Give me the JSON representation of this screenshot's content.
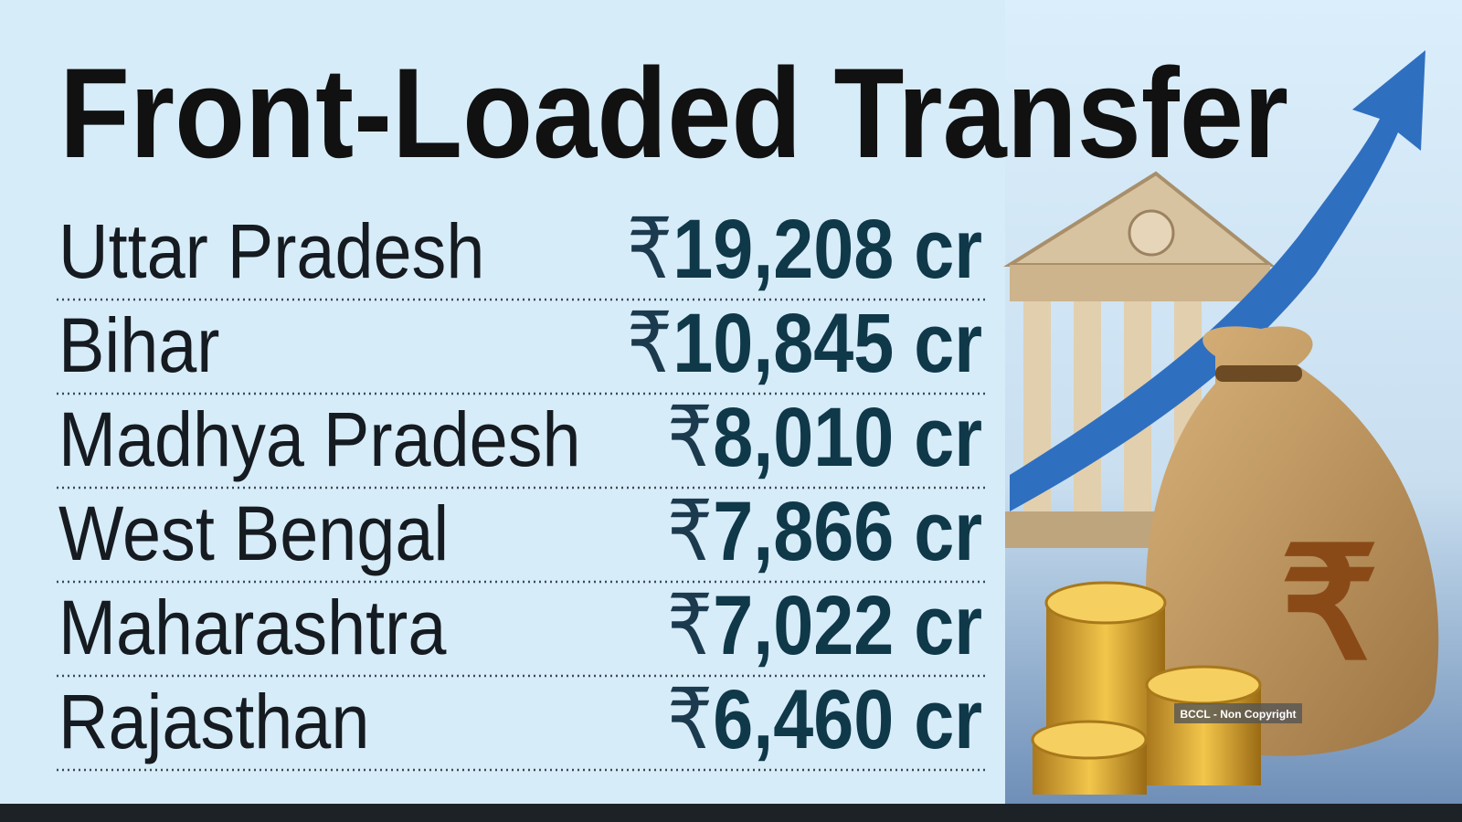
{
  "header": {
    "title": "Front-Loaded Transfer"
  },
  "table": {
    "rows": [
      {
        "state": "Uttar Pradesh",
        "currency": "₹",
        "amount": "19,208",
        "unit": "cr"
      },
      {
        "state": "Bihar",
        "currency": "₹",
        "amount": "10,845",
        "unit": "cr"
      },
      {
        "state": "Madhya Pradesh",
        "currency": "₹",
        "amount": "8,010",
        "unit": "cr"
      },
      {
        "state": "West Bengal",
        "currency": "₹",
        "amount": "7,866",
        "unit": "cr"
      },
      {
        "state": "Maharashtra",
        "currency": "₹",
        "amount": "7,022",
        "unit": "cr"
      },
      {
        "state": "Rajasthan",
        "currency": "₹",
        "amount": "6,460",
        "unit": "cr"
      }
    ]
  },
  "watermark": "BCCL - Non Copyright"
}
